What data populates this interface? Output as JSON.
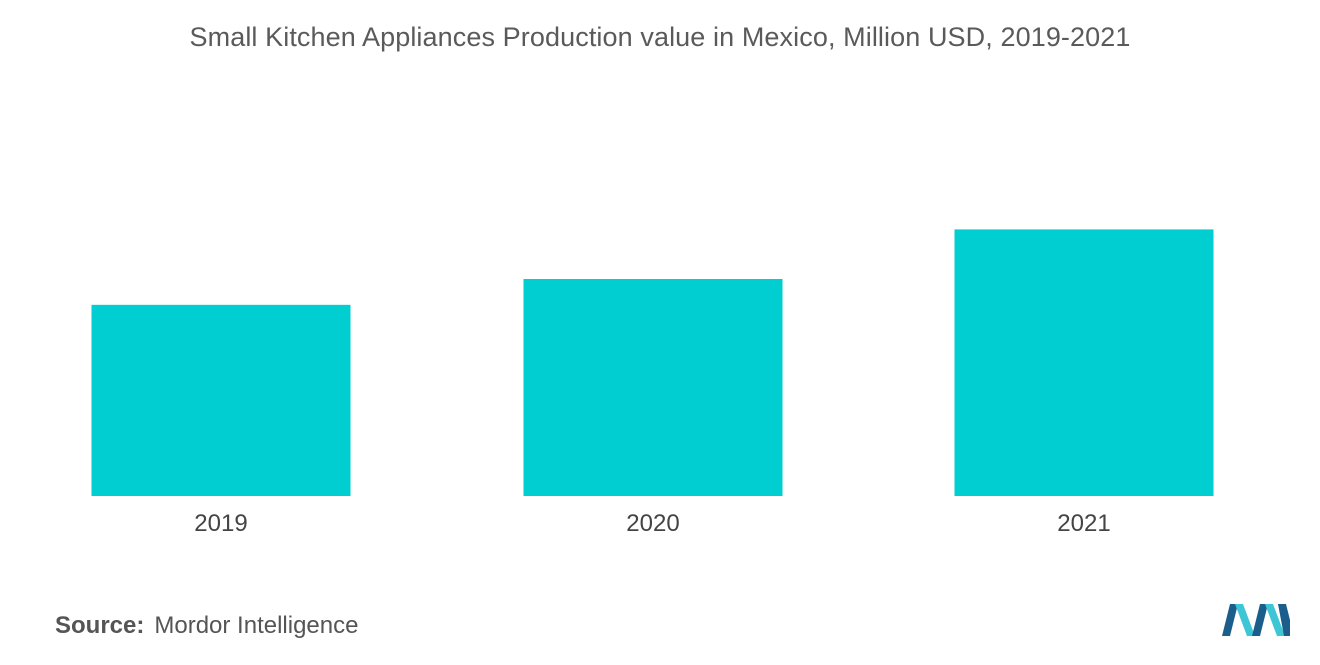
{
  "chart_data": {
    "type": "bar",
    "title": "Small Kitchen Appliances Production value in Mexico, Million USD, 2019-2021",
    "categories": [
      "2019",
      "2020",
      "2021"
    ],
    "values": [
      185,
      210,
      258
    ],
    "xlabel": "",
    "ylabel": "",
    "ylim": [
      0,
      300
    ],
    "grid": false,
    "legend": "none",
    "bar_color": "#00CED1"
  },
  "footer": {
    "source_label": "Source:",
    "source_value": "Mordor Intelligence"
  },
  "brand": {
    "logo_icon": "mordor-intelligence-logo-icon",
    "logo_color_dark": "#1b5e8c",
    "logo_color_light": "#3ec6d6"
  }
}
